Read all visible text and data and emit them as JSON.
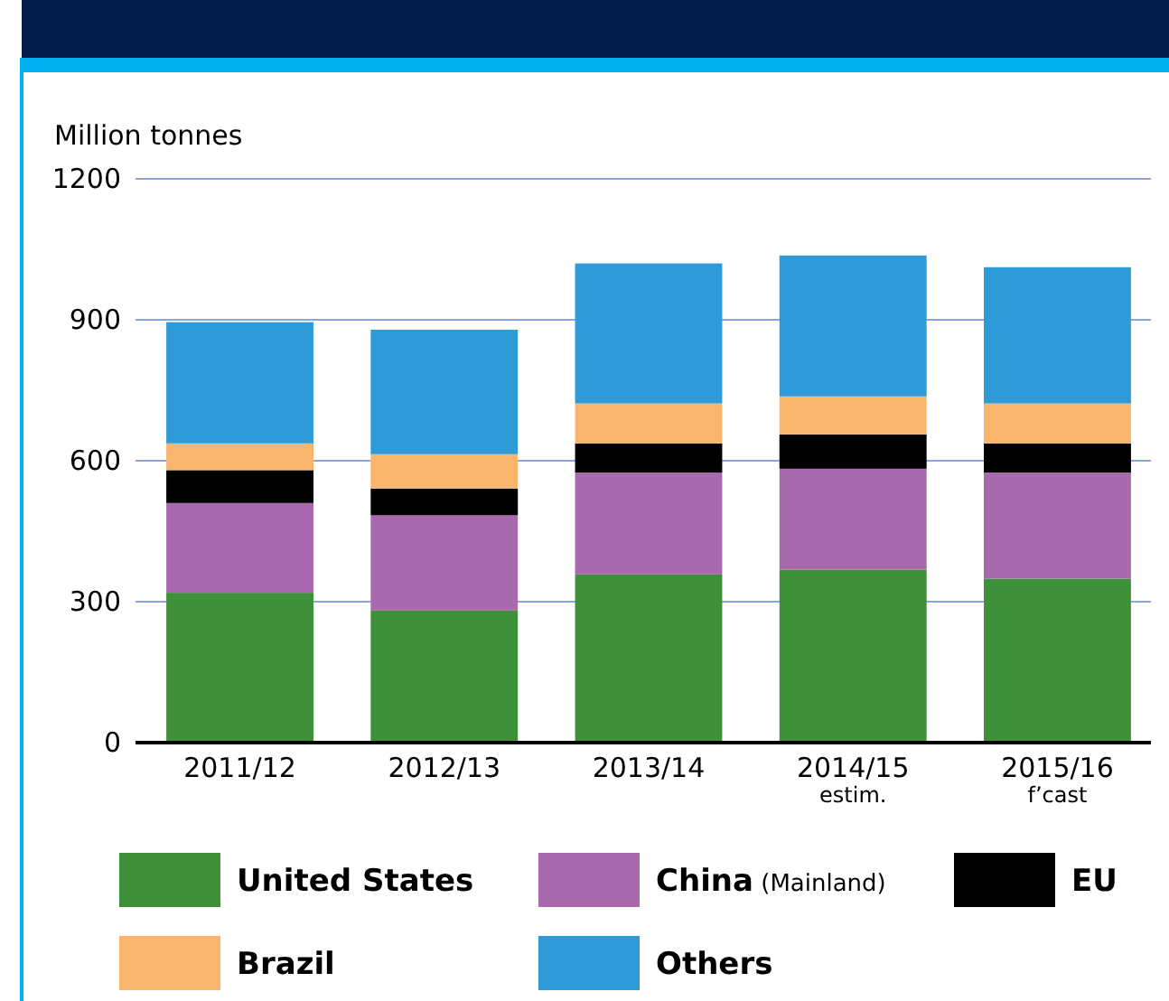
{
  "chart_data": {
    "type": "bar",
    "stacked": true,
    "ylabel": "Million tonnes",
    "categories": [
      "2011/12",
      "2012/13",
      "2013/14",
      "2014/15\nestim.",
      "2015/16\nf’cast"
    ],
    "series": [
      {
        "name": "United States",
        "color": "#3f9139",
        "values": [
          319,
          281,
          358,
          368,
          349
        ]
      },
      {
        "name": "China (Mainland)",
        "color": "#a96aad",
        "values": [
          191,
          203,
          217,
          215,
          226
        ]
      },
      {
        "name": "EU",
        "color": "#000000",
        "values": [
          70,
          57,
          62,
          73,
          62
        ]
      },
      {
        "name": "Brazil",
        "color": "#f9b46e",
        "values": [
          57,
          73,
          85,
          81,
          85
        ]
      },
      {
        "name": "Others",
        "color": "#2f9ad8",
        "values": [
          258,
          265,
          298,
          300,
          290
        ]
      }
    ],
    "ylim": [
      0,
      1200
    ],
    "yticks": [
      0,
      300,
      600,
      900,
      1200
    ],
    "grid": "y",
    "legend": "bottom"
  }
}
